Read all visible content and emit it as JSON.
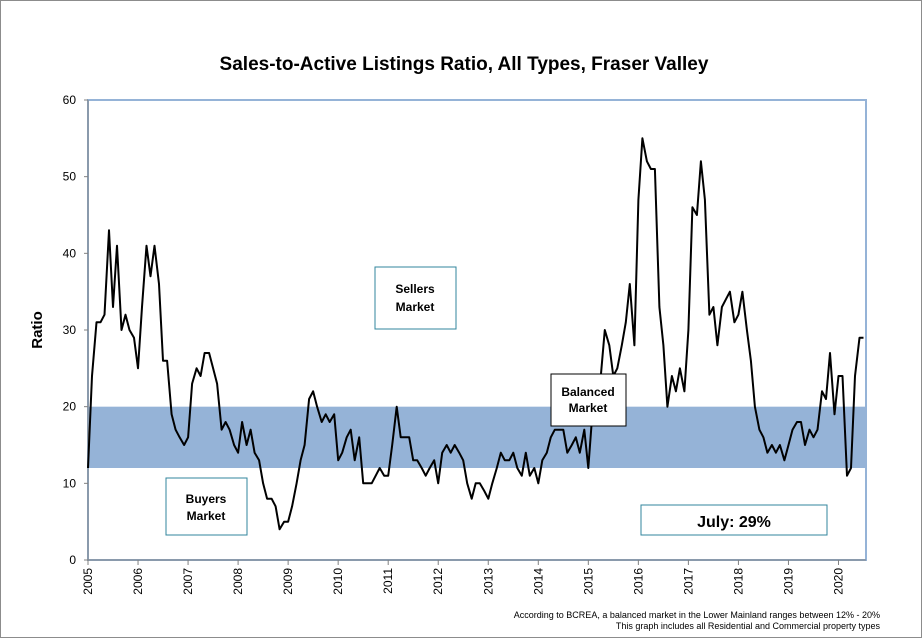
{
  "chart_data": {
    "type": "line",
    "title": "Sales-to-Active Listings Ratio, All Types, Fraser Valley",
    "xlabel": "",
    "ylabel": "Ratio",
    "xlim": [
      2005,
      2020.55
    ],
    "ylim": [
      0,
      60
    ],
    "yticks": [
      "0",
      "10",
      "20",
      "30",
      "40",
      "50",
      "60"
    ],
    "xticks": [
      "2005",
      "2006",
      "2007",
      "2008",
      "2009",
      "2010",
      "2011",
      "2012",
      "2013",
      "2014",
      "2015",
      "2016",
      "2017",
      "2018",
      "2019",
      "2020"
    ],
    "balanced_band": [
      12,
      20
    ],
    "annotations": {
      "sellers": [
        "Sellers",
        "Market"
      ],
      "buyers": [
        "Buyers",
        "Market"
      ],
      "balanced": [
        "Balanced",
        "Market"
      ],
      "latest": "July: 29%"
    },
    "footnotes": [
      "According to BCREA, a balanced market in the Lower Mainland ranges between 12% - 20%",
      "This graph includes all Residential and Commercial property types"
    ],
    "colors": {
      "band": "#95b3d7",
      "line": "#000000",
      "plot_border": "#95b3d7",
      "box_border": "#31859c"
    },
    "series": [
      {
        "x": [
          2005.0,
          2005.08,
          2005.17,
          2005.25,
          2005.33,
          2005.42,
          2005.5,
          2005.58,
          2005.67,
          2005.75,
          2005.83,
          2005.92,
          2006.0,
          2006.08,
          2006.17,
          2006.25,
          2006.33,
          2006.42,
          2006.5,
          2006.58,
          2006.67,
          2006.75,
          2006.83,
          2006.92,
          2007.0,
          2007.08,
          2007.17,
          2007.25,
          2007.33,
          2007.42,
          2007.5,
          2007.58,
          2007.67,
          2007.75,
          2007.83,
          2007.92,
          2008.0,
          2008.08,
          2008.17,
          2008.25,
          2008.33,
          2008.42,
          2008.5,
          2008.58,
          2008.67,
          2008.75,
          2008.83,
          2008.92,
          2009.0,
          2009.08,
          2009.17,
          2009.25,
          2009.33,
          2009.42,
          2009.5,
          2009.58,
          2009.67,
          2009.75,
          2009.83,
          2009.92,
          2010.0,
          2010.08,
          2010.17,
          2010.25,
          2010.33,
          2010.42,
          2010.5,
          2010.58,
          2010.67,
          2010.75,
          2010.83,
          2010.92,
          2011.0,
          2011.08,
          2011.17,
          2011.25,
          2011.33,
          2011.42,
          2011.5,
          2011.58,
          2011.67,
          2011.75,
          2011.83,
          2011.92,
          2012.0,
          2012.08,
          2012.17,
          2012.25,
          2012.33,
          2012.42,
          2012.5,
          2012.58,
          2012.67,
          2012.75,
          2012.83,
          2012.92,
          2013.0,
          2013.08,
          2013.17,
          2013.25,
          2013.33,
          2013.42,
          2013.5,
          2013.58,
          2013.67,
          2013.75,
          2013.83,
          2013.92,
          2014.0,
          2014.08,
          2014.17,
          2014.25,
          2014.33,
          2014.42,
          2014.5,
          2014.58,
          2014.67,
          2014.75,
          2014.83,
          2014.92,
          2015.0,
          2015.08,
          2015.17,
          2015.25,
          2015.33,
          2015.42,
          2015.5,
          2015.58,
          2015.67,
          2015.75,
          2015.83,
          2015.92,
          2016.0,
          2016.08,
          2016.17,
          2016.25,
          2016.33,
          2016.42,
          2016.5,
          2016.58,
          2016.67,
          2016.75,
          2016.83,
          2016.92,
          2017.0,
          2017.08,
          2017.17,
          2017.25,
          2017.33,
          2017.42,
          2017.5,
          2017.58,
          2017.67,
          2017.75,
          2017.83,
          2017.92,
          2018.0,
          2018.08,
          2018.17,
          2018.25,
          2018.33,
          2018.42,
          2018.5,
          2018.58,
          2018.67,
          2018.75,
          2018.83,
          2018.92,
          2019.0,
          2019.08,
          2019.17,
          2019.25,
          2019.33,
          2019.42,
          2019.5,
          2019.58,
          2019.67,
          2019.75,
          2019.83,
          2019.92,
          2020.0,
          2020.08,
          2020.17,
          2020.25,
          2020.33,
          2020.42,
          2020.5
        ],
        "values": [
          12,
          24,
          31,
          31,
          32,
          43,
          33,
          41,
          30,
          32,
          30,
          29,
          25,
          33,
          41,
          37,
          41,
          36,
          26,
          26,
          19,
          17,
          16,
          15,
          16,
          23,
          25,
          24,
          27,
          27,
          25,
          23,
          17,
          18,
          17,
          15,
          14,
          18,
          15,
          17,
          14,
          13,
          10,
          8,
          8,
          7,
          4,
          5,
          5,
          7,
          10,
          13,
          15,
          21,
          22,
          20,
          18,
          19,
          18,
          19,
          13,
          14,
          16,
          17,
          13,
          16,
          10,
          10,
          10,
          11,
          12,
          11,
          11,
          15,
          20,
          16,
          16,
          16,
          13,
          13,
          12,
          11,
          12,
          13,
          10,
          14,
          15,
          14,
          15,
          14,
          13,
          10,
          8,
          10,
          10,
          9,
          8,
          10,
          12,
          14,
          13,
          13,
          14,
          12,
          11,
          14,
          11,
          12,
          10,
          13,
          14,
          16,
          17,
          17,
          17,
          14,
          15,
          16,
          14,
          17,
          12,
          19,
          22,
          24,
          30,
          28,
          24,
          25,
          28,
          31,
          36,
          28,
          47,
          55,
          52,
          51,
          51,
          33,
          28,
          20,
          24,
          22,
          25,
          22,
          30,
          46,
          45,
          52,
          47,
          32,
          33,
          28,
          33,
          34,
          35,
          31,
          32,
          35,
          30,
          26,
          20,
          17,
          16,
          14,
          15,
          14,
          15,
          13,
          15,
          17,
          18,
          18,
          15,
          17,
          16,
          17,
          22,
          21,
          27,
          19,
          24,
          24,
          11,
          12,
          24,
          29,
          29
        ]
      }
    ]
  }
}
